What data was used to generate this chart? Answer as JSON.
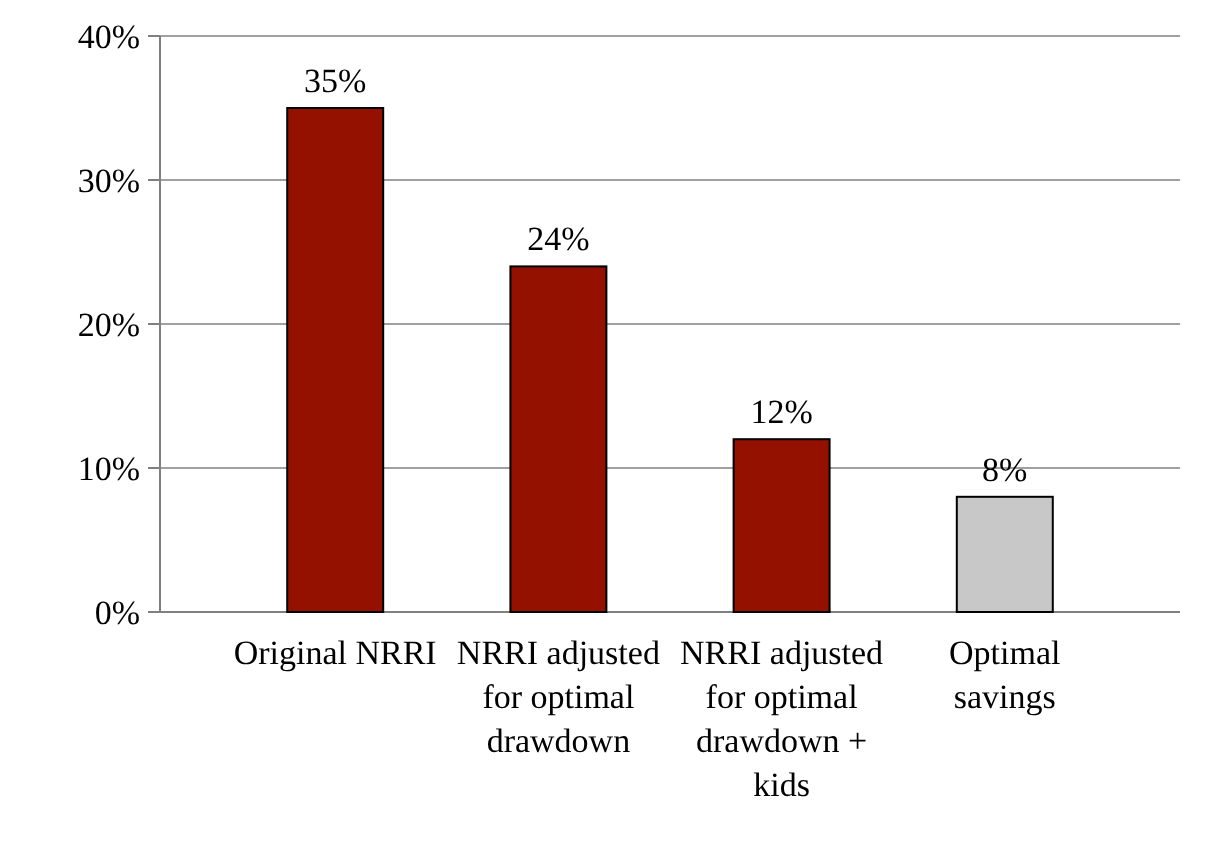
{
  "chart_data": {
    "type": "bar",
    "categories": [
      "Original NRRI",
      "NRRI adjusted for optimal drawdown",
      "NRRI adjusted for optimal drawdown + kids",
      "Optimal savings"
    ],
    "values": [
      35,
      24,
      12,
      8
    ],
    "colors": [
      "#941100",
      "#941100",
      "#941100",
      "#c8c8c8"
    ],
    "value_labels": [
      "35%",
      "24%",
      "12%",
      "8%"
    ],
    "ylim": [
      0,
      40
    ],
    "yticks": [
      {
        "value": 0,
        "label": "0%"
      },
      {
        "value": 10,
        "label": "10%"
      },
      {
        "value": 20,
        "label": "20%"
      },
      {
        "value": 30,
        "label": "30%"
      },
      {
        "value": 40,
        "label": "40%"
      }
    ],
    "grid": "y"
  }
}
